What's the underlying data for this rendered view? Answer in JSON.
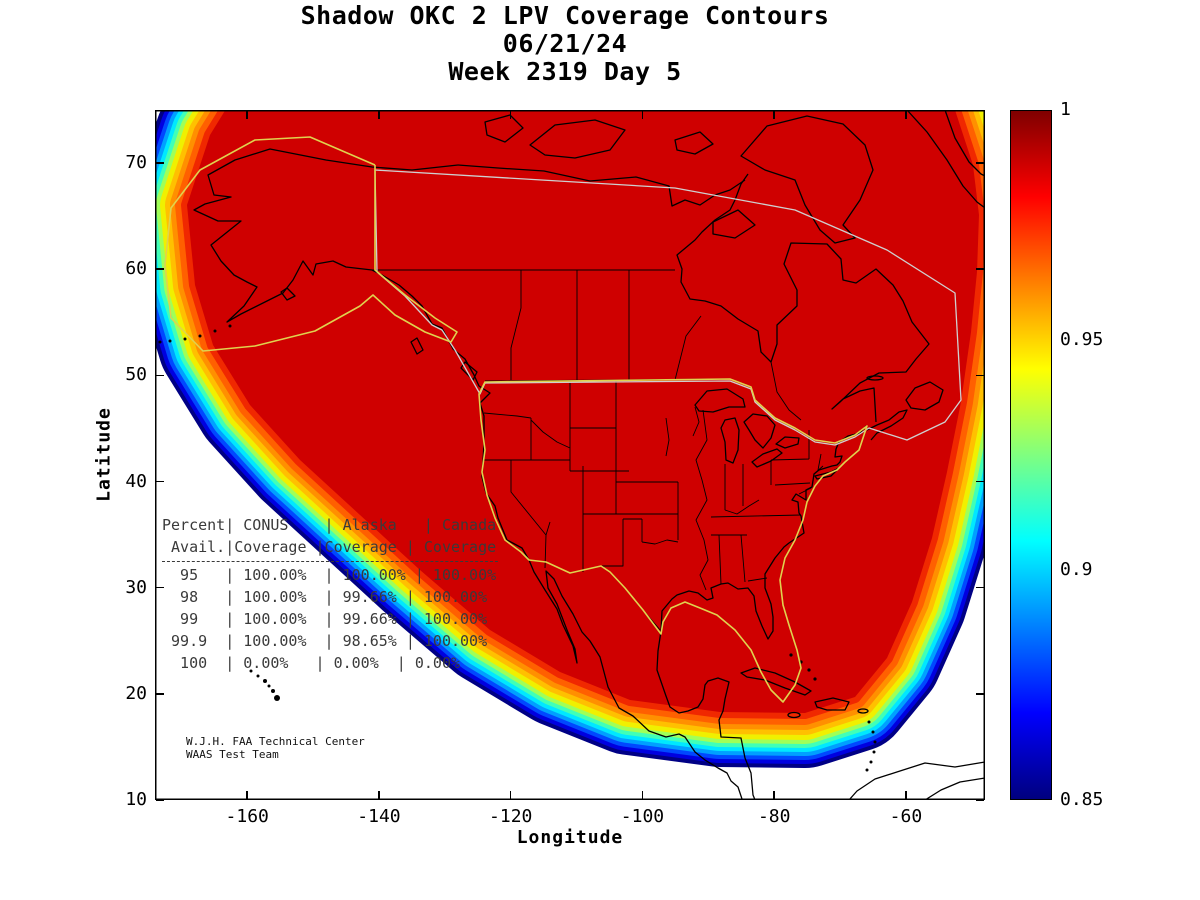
{
  "title": {
    "line1": "Shadow OKC 2 LPV Coverage Contours",
    "line2": "06/21/24",
    "line3": "Week 2319 Day 5"
  },
  "axes": {
    "xlabel": "Longitude",
    "ylabel": "Latitude",
    "xlim": [
      -174,
      -48
    ],
    "ylim": [
      10,
      75
    ],
    "x_ticks": [
      -160,
      -140,
      -120,
      -100,
      -80,
      -60
    ],
    "x_tick_labels": [
      "-160",
      "-140",
      "-120",
      "-100",
      "-80",
      "-60"
    ],
    "y_ticks": [
      10,
      20,
      30,
      40,
      50,
      60,
      70
    ],
    "y_tick_labels": [
      "10",
      "20",
      "30",
      "40",
      "50",
      "60",
      "70"
    ]
  },
  "colorbar": {
    "min": 0.85,
    "max": 1,
    "colormap": "jet",
    "tick_values": [
      0.85,
      0.9,
      0.95,
      1
    ],
    "tick_labels": [
      "0.85",
      "0.9",
      "0.95",
      "1"
    ]
  },
  "coverage_table": {
    "columns": [
      "Percent Avail.",
      "CONUS Coverage",
      "Alaska Coverage",
      "Canada Coverage"
    ],
    "rows": [
      {
        "percent_avail": "95",
        "conus": "100.00%",
        "alaska": "100.00%",
        "canada": "100.00%"
      },
      {
        "percent_avail": "98",
        "conus": "100.00%",
        "alaska": "99.66%",
        "canada": "100.00%"
      },
      {
        "percent_avail": "99",
        "conus": "100.00%",
        "alaska": "99.66%",
        "canada": "100.00%"
      },
      {
        "percent_avail": "99.9",
        "conus": "100.00%",
        "alaska": "98.65%",
        "canada": "100.00%"
      },
      {
        "percent_avail": "100",
        "conus": "0.00%",
        "alaska": "0.00%",
        "canada": "0.00%"
      }
    ],
    "lines": [
      "Percent| CONUS    | Alaska   | Canada",
      " Avail.|Coverage |Coverage | Coverage",
      "  95   | 100.00%  | 100.00% | 100.00%",
      "  98   | 100.00%  | 99.66% | 100.00%",
      "  99   | 100.00%  | 99.66% | 100.00%",
      " 99.9  | 100.00%  | 98.65% | 100.00%",
      "  100  | 0.00%   | 0.00%  | 0.00%"
    ]
  },
  "credit": {
    "line1": "W.J.H. FAA Technical Center",
    "line2": "WAAS Test Team"
  },
  "chart_data": {
    "type": "heatmap",
    "subtype": "filled-contour-coverage-map",
    "title": "Shadow OKC 2 LPV Coverage Contours",
    "date": "06/21/24",
    "gps_week": 2319,
    "gps_day": 5,
    "xlabel": "Longitude",
    "ylabel": "Latitude",
    "xlim": [
      -174,
      -48
    ],
    "ylim": [
      10,
      75
    ],
    "x_ticks": [
      -160,
      -140,
      -120,
      -100,
      -80,
      -60
    ],
    "y_ticks": [
      10,
      20,
      30,
      40,
      50,
      60,
      70
    ],
    "colorbar": {
      "min": 0.85,
      "max": 1,
      "ticks": [
        0.85,
        0.9,
        0.95,
        1
      ],
      "colormap": "jet",
      "legend_position": "right"
    },
    "grid": false,
    "coverage_summary": [
      {
        "percent_avail": 95,
        "conus_coverage": "100.00%",
        "alaska_coverage": "100.00%",
        "canada_coverage": "100.00%"
      },
      {
        "percent_avail": 98,
        "conus_coverage": "100.00%",
        "alaska_coverage": "99.66%",
        "canada_coverage": "100.00%"
      },
      {
        "percent_avail": 99,
        "conus_coverage": "100.00%",
        "alaska_coverage": "99.66%",
        "canada_coverage": "100.00%"
      },
      {
        "percent_avail": 99.9,
        "conus_coverage": "100.00%",
        "alaska_coverage": "98.65%",
        "canada_coverage": "100.00%"
      },
      {
        "percent_avail": 100,
        "conus_coverage": "0.00%",
        "alaska_coverage": "0.00%",
        "canada_coverage": "0.00%"
      }
    ],
    "contour_band_colors": [
      "#000085",
      "#0000e0",
      "#0048ff",
      "#00a0ff",
      "#00e8ff",
      "#40ffb8",
      "#a0ff58",
      "#f0f000",
      "#ffc000",
      "#ff9000",
      "#ff6000",
      "#f02800"
    ],
    "interior_color": "#cf0000",
    "region_boundary_colors": {
      "conus": "#e0d24e",
      "alaska": "#e0d24e",
      "canada": "#cfcfcf"
    }
  }
}
